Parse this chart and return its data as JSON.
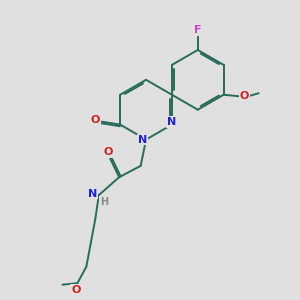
{
  "bg_color": "#e0e0e0",
  "bond_color": "#2a6a5a",
  "bond_width": 1.4,
  "dbo": 0.055,
  "atom_labels": {
    "F": {
      "color": "#cc44cc",
      "fontsize": 8
    },
    "O": {
      "color": "#cc2222",
      "fontsize": 8
    },
    "N": {
      "color": "#2222cc",
      "fontsize": 8
    },
    "H": {
      "color": "#888888",
      "fontsize": 7
    }
  }
}
